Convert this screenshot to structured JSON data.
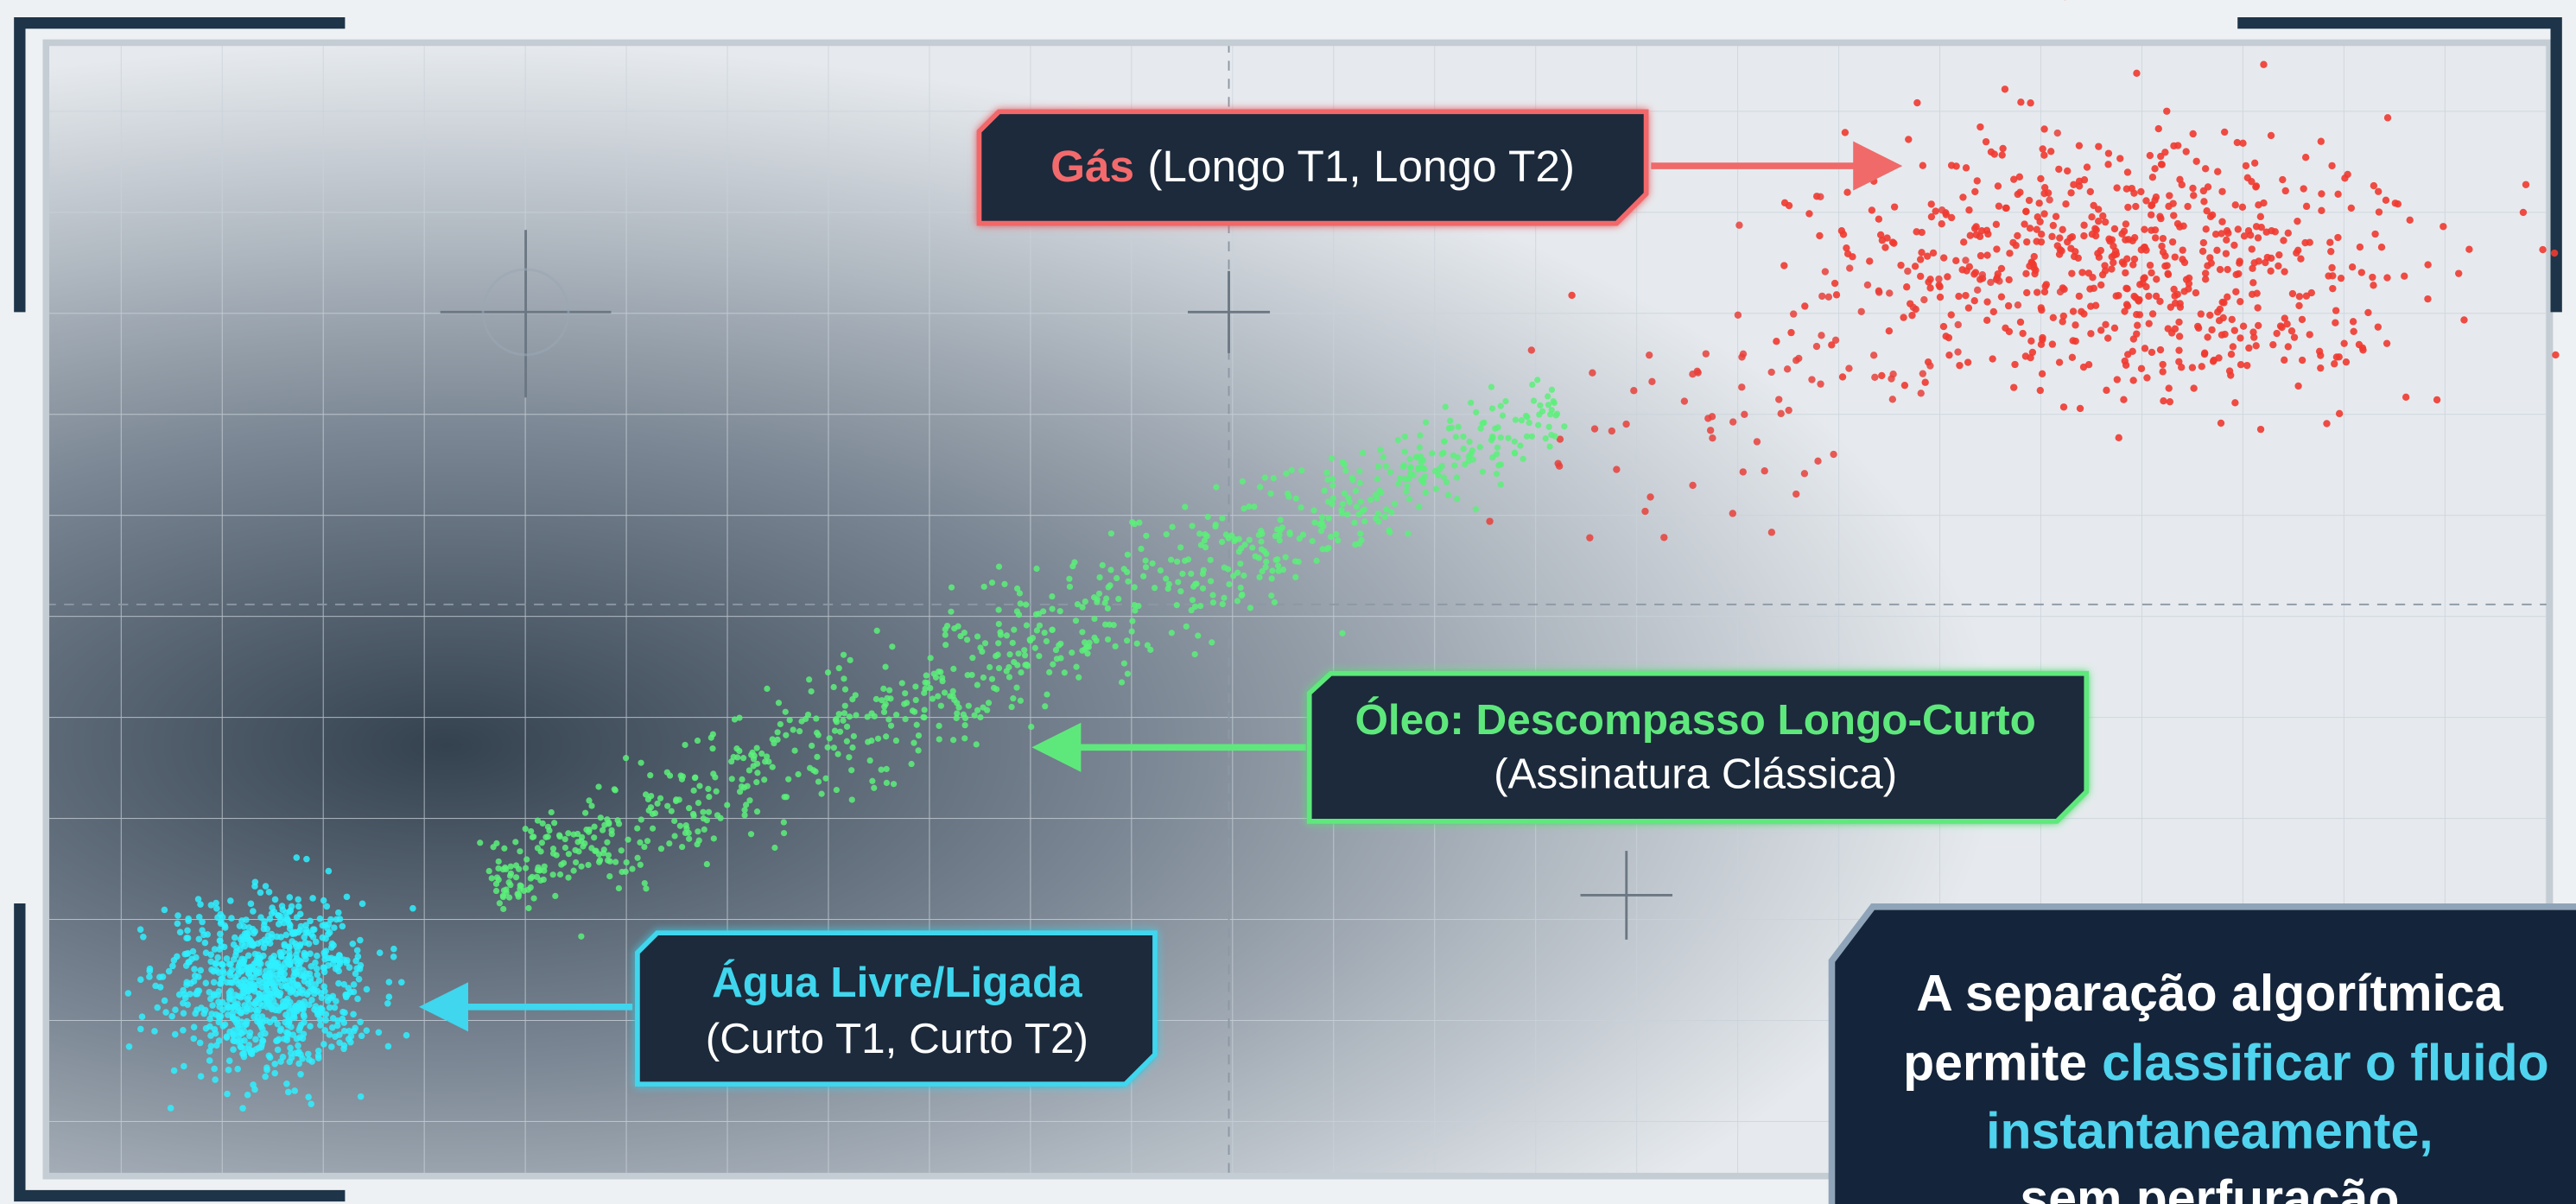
{
  "labels": {
    "gas": {
      "title": "Gás",
      "detail": "(Longo T1, Longo T2)"
    },
    "oil": {
      "title": "Óleo: Descompasso Longo-Curto",
      "detail": "(Assinatura Clássica)"
    },
    "water": {
      "title": "Água Livre/Ligada",
      "detail": "(Curto T1, Curto T2)"
    }
  },
  "caption": {
    "line1": "A separação algorítmica",
    "line2_plain": "permite",
    "line2_highlight": "classificar o fluido",
    "line3": "instantaneamente,",
    "line4": "sem perfuração"
  }
}
